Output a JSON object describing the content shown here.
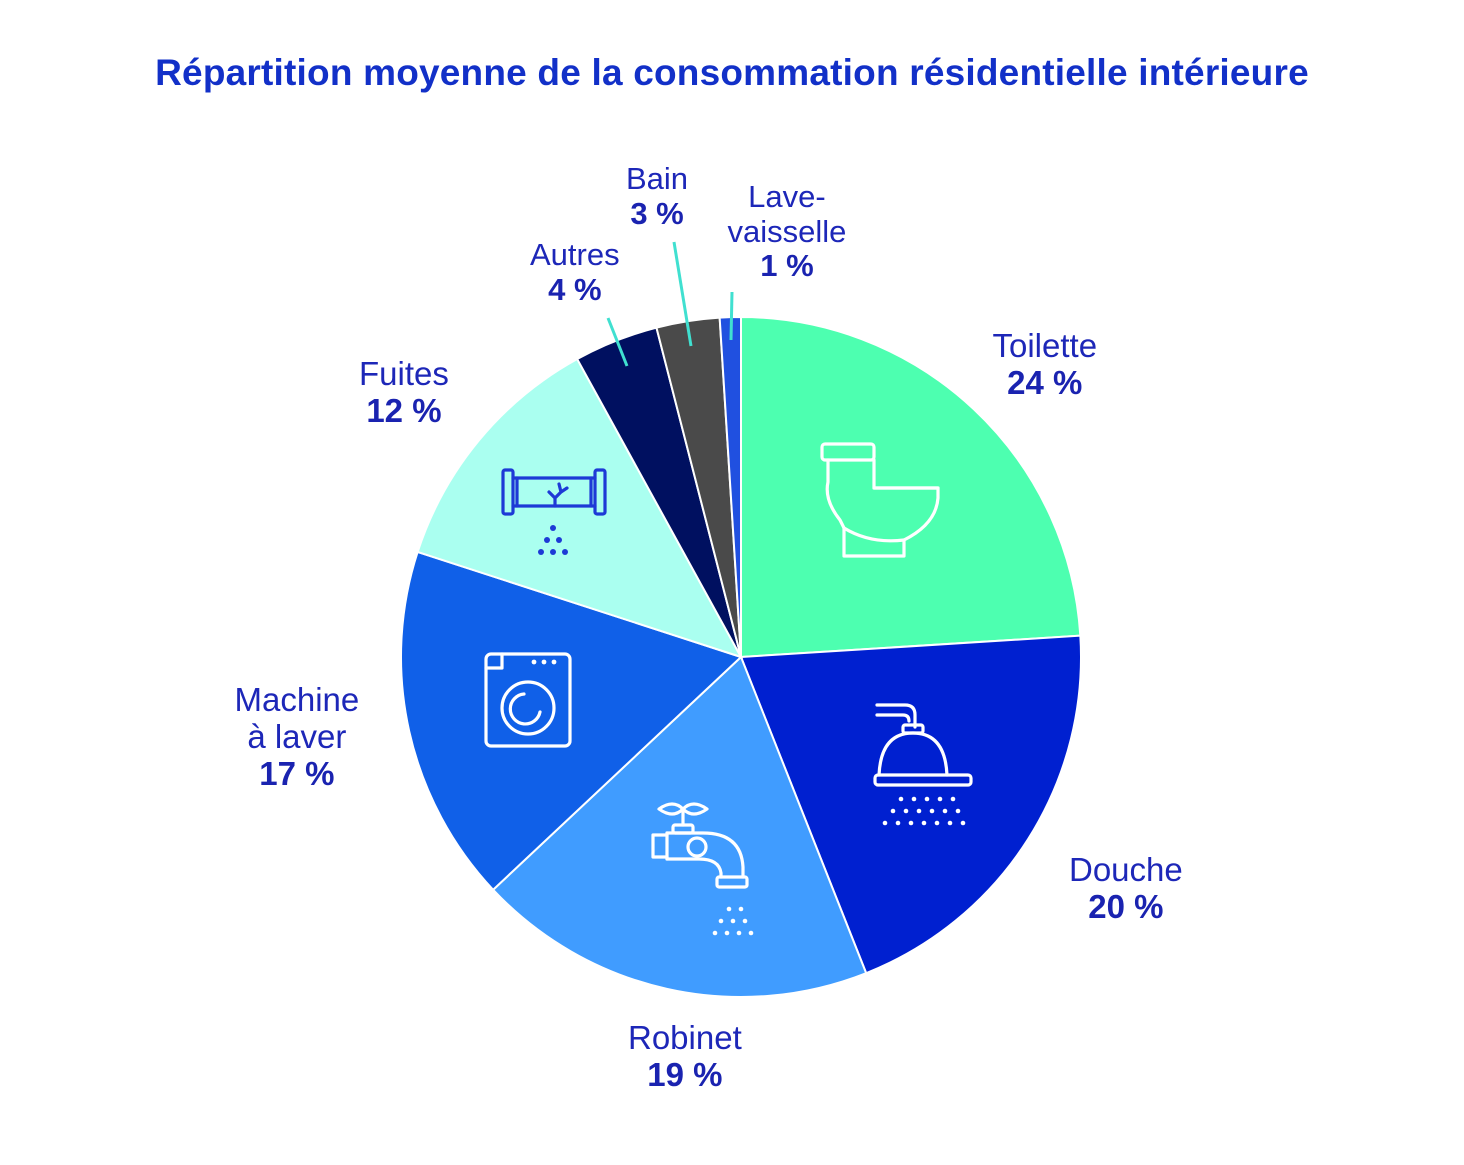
{
  "chart_data": {
    "type": "pie",
    "title": "Répartition moyenne de la consommation résidentielle intérieure",
    "slices": [
      {
        "label": "Toilette",
        "value": 24,
        "value_label": "24 %",
        "color": "#4dffb0",
        "icon": "toilet-icon"
      },
      {
        "label": "Douche",
        "value": 20,
        "value_label": "20 %",
        "color": "#0020d0",
        "icon": "shower-icon"
      },
      {
        "label": "Robinet",
        "value": 19,
        "value_label": "19 %",
        "color": "#409cff",
        "icon": "faucet-icon"
      },
      {
        "label": "Machine à laver",
        "value": 17,
        "value_label": "17 %",
        "color": "#1060e8",
        "icon": "washing-machine-icon"
      },
      {
        "label": "Fuites",
        "value": 12,
        "value_label": "12 %",
        "color": "#aafff0",
        "icon": "leaking-pipe-icon"
      },
      {
        "label": "Autres",
        "value": 4,
        "value_label": "4 %",
        "color": "#001060",
        "icon": ""
      },
      {
        "label": "Bain",
        "value": 3,
        "value_label": "3 %",
        "color": "#4a4a4a",
        "icon": ""
      },
      {
        "label": "Lave-vaisselle",
        "value": 1,
        "value_label": "1 %",
        "color": "#2050e0",
        "icon": ""
      }
    ],
    "label_lines": {
      "Toilette": [
        "Toilette"
      ],
      "Douche": [
        "Douche"
      ],
      "Robinet": [
        "Robinet"
      ],
      "Machine à laver": [
        "Machine",
        "à laver"
      ],
      "Fuites": [
        "Fuites"
      ],
      "Autres": [
        "Autres"
      ],
      "Bain": [
        "Bain"
      ],
      "Lave-vaisselle": [
        "Lave-",
        "vaisselle"
      ]
    },
    "start_angle": "12 o'clock",
    "direction": "clockwise",
    "leader_line_color": "#40e0d0",
    "text_color": "#1d27b8"
  }
}
